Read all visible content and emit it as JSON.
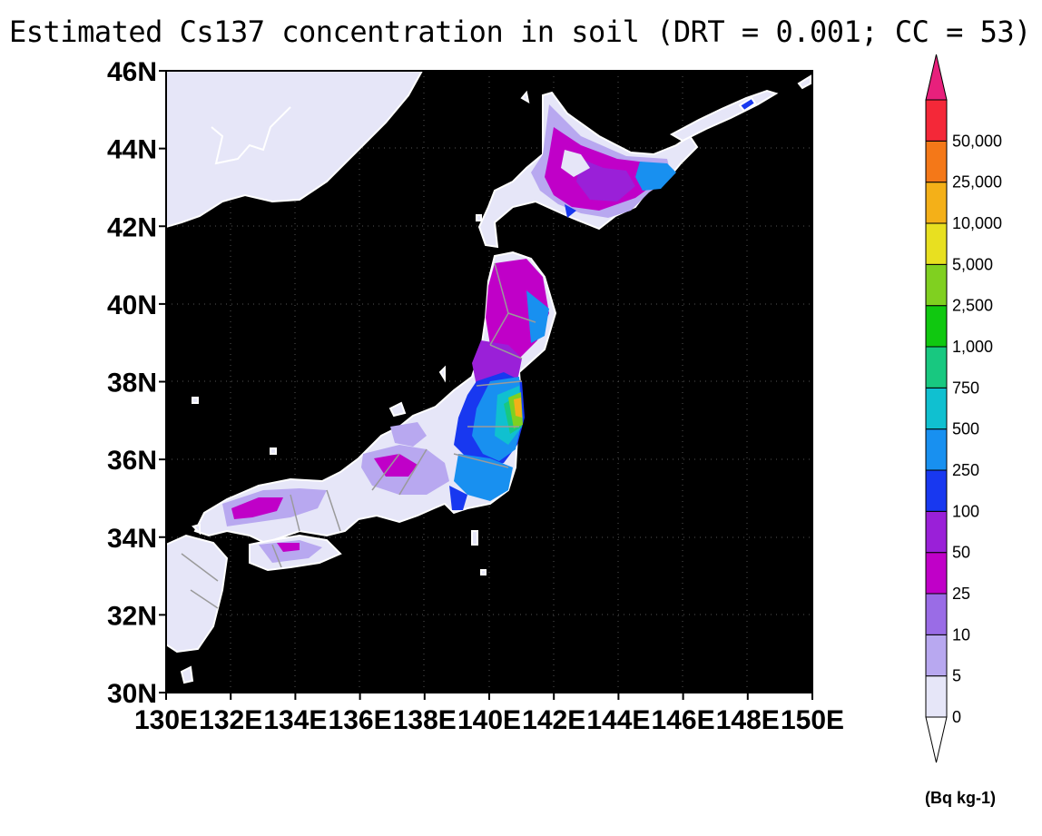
{
  "title": "Estimated Cs137 concentration in soil (DRT = 0.001; CC = 53)",
  "map": {
    "lon_range": [
      130,
      150
    ],
    "lat_range": [
      30,
      46
    ],
    "ocean_color": "#000000",
    "coast_color": "#ffffff",
    "lat_ticks": [
      "30N",
      "32N",
      "34N",
      "36N",
      "38N",
      "40N",
      "42N",
      "44N",
      "46N"
    ],
    "lon_ticks": [
      "130E",
      "132E",
      "134E",
      "136E",
      "138E",
      "140E",
      "142E",
      "144E",
      "146E",
      "148E",
      "150E"
    ]
  },
  "colorbar": {
    "labels": [
      "0",
      "5",
      "10",
      "25",
      "50",
      "100",
      "250",
      "500",
      "750",
      "1,000",
      "2,500",
      "5,000",
      "10,000",
      "25,000",
      "50,000"
    ],
    "colors": [
      "#e6e6f8",
      "#b8a8f0",
      "#9a6ce6",
      "#c000c8",
      "#9a20d8",
      "#1838f0",
      "#1890f0",
      "#10c0d0",
      "#18c880",
      "#10c810",
      "#80d020",
      "#e8e020",
      "#f4b018",
      "#f47818",
      "#f42838",
      "#e8207c"
    ],
    "units": "(Bq kg-1)"
  }
}
